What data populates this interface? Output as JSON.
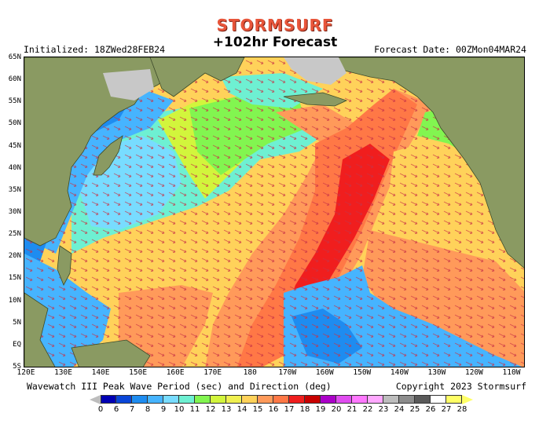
{
  "header": {
    "brand": "STORMSURF",
    "title": "+102hr Forecast",
    "initialized": "Initialized: 18ZWed28FEB24",
    "forecast_date": "Forecast Date: 00ZMon04MAR24"
  },
  "map": {
    "lat_labels": [
      "65N",
      "60N",
      "55N",
      "50N",
      "45N",
      "40N",
      "35N",
      "30N",
      "25N",
      "20N",
      "15N",
      "10N",
      "5N",
      "EQ",
      "5S"
    ],
    "lon_labels": [
      "120E",
      "130E",
      "140E",
      "150E",
      "160E",
      "170E",
      "180",
      "170W",
      "160W",
      "150W",
      "140W",
      "130W",
      "120W",
      "110W"
    ],
    "land_color": "#8a9a62",
    "ice_color": "#c8c8c8"
  },
  "footer": {
    "caption": "Wavewatch III Peak Wave Period (sec) and Direction (deg)",
    "copyright": "Copyright 2023 Stormsurf"
  },
  "legend": {
    "values": [
      "0",
      "6",
      "7",
      "8",
      "9",
      "10",
      "11",
      "12",
      "13",
      "14",
      "15",
      "16",
      "17",
      "18",
      "19",
      "20",
      "21",
      "22",
      "23",
      "24",
      "25",
      "26",
      "27",
      "28"
    ],
    "colors": [
      "#0000b4",
      "#0a46d8",
      "#1e8cf0",
      "#46b4ff",
      "#78dcff",
      "#6ef0d2",
      "#82f550",
      "#d2f53c",
      "#f0f050",
      "#ffd25a",
      "#ff9a5a",
      "#ff7846",
      "#f01e1e",
      "#c80000",
      "#aa00c8",
      "#e04cf0",
      "#ff78ff",
      "#ffa8ff",
      "#bdbdbd",
      "#8c8c8c",
      "#5a5a5a",
      "#ffffff",
      "#ffff66"
    ]
  }
}
